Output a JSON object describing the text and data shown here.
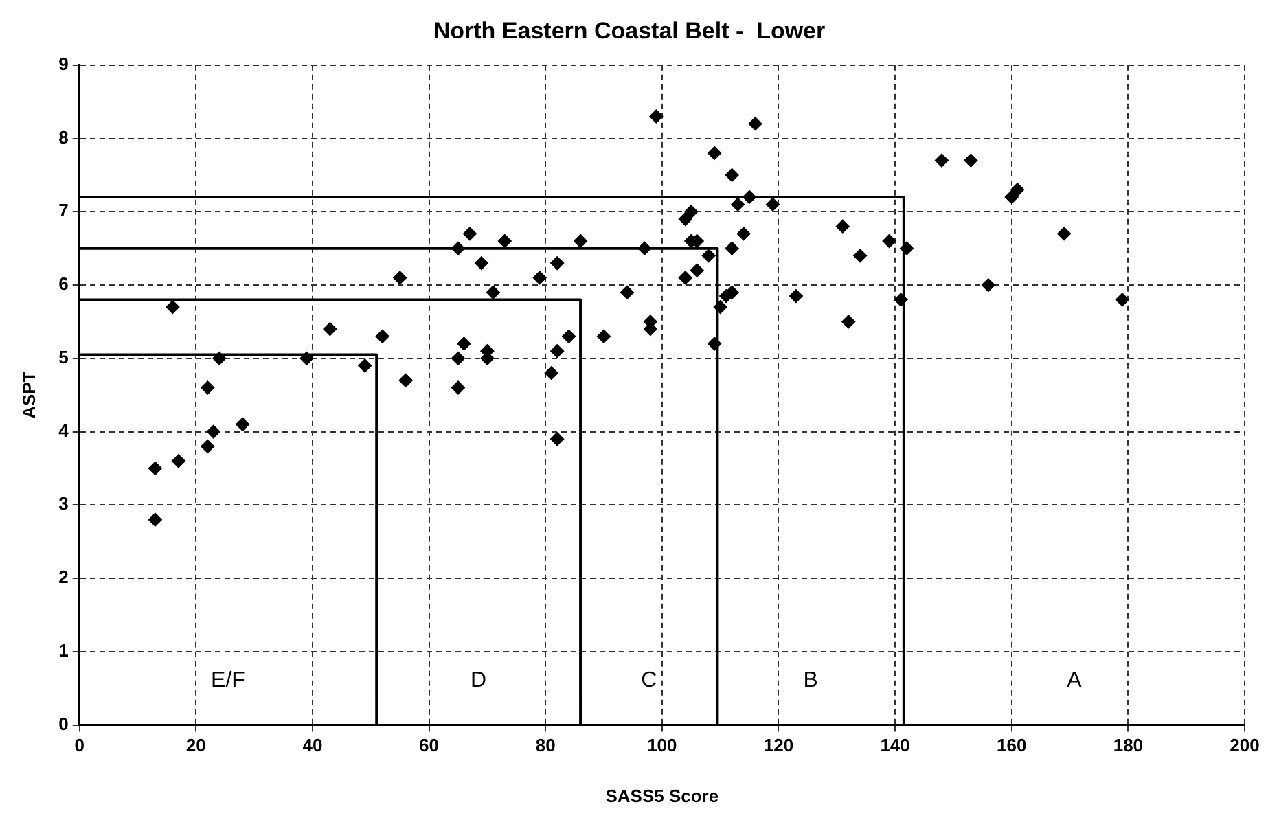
{
  "chart_data": {
    "type": "scatter",
    "title": "North Eastern Coastal Belt -  Lower",
    "xlabel": "SASS5 Score",
    "ylabel": "ASPT",
    "xlim": [
      0,
      200
    ],
    "xticks": [
      0,
      20,
      40,
      60,
      80,
      100,
      120,
      140,
      160,
      180,
      200
    ],
    "ylim": [
      0,
      9
    ],
    "yticks": [
      0,
      1,
      2,
      3,
      4,
      5,
      6,
      7,
      8,
      9
    ],
    "grid": true,
    "legend": false,
    "marker": "diamond",
    "series": [
      {
        "color": "#000000",
        "x": [
          13,
          13,
          16,
          17,
          22,
          22,
          23,
          24,
          28,
          39,
          43,
          49,
          52,
          55,
          56,
          56,
          65,
          65,
          65,
          66,
          67,
          69,
          70,
          70,
          71,
          73,
          79,
          81,
          82,
          82,
          82,
          84,
          86,
          90,
          94,
          97,
          98,
          98,
          99,
          104,
          104,
          105,
          105,
          106,
          106,
          108,
          109,
          109,
          110,
          111,
          112,
          112,
          112,
          113,
          114,
          115,
          116,
          119,
          123,
          131,
          132,
          134,
          139,
          141,
          142,
          148,
          153,
          156,
          160,
          161,
          169,
          179
        ],
        "values": [
          2.8,
          3.5,
          5.7,
          3.6,
          3.8,
          4.6,
          4.0,
          5.0,
          4.1,
          5.0,
          5.4,
          4.9,
          5.3,
          6.1,
          4.7,
          4.7,
          4.6,
          5.0,
          6.5,
          5.2,
          6.7,
          6.3,
          5.0,
          5.1,
          5.9,
          6.6,
          6.1,
          4.8,
          3.9,
          5.1,
          6.3,
          5.3,
          6.6,
          5.3,
          5.9,
          6.5,
          5.4,
          5.5,
          8.3,
          6.9,
          6.1,
          7.0,
          6.6,
          6.6,
          6.2,
          6.4,
          7.8,
          5.2,
          5.7,
          5.85,
          5.9,
          6.5,
          7.5,
          7.1,
          6.7,
          7.2,
          8.2,
          7.1,
          5.85,
          6.8,
          5.5,
          6.4,
          6.6,
          5.8,
          6.5,
          7.7,
          7.7,
          6.0,
          7.2,
          7.3,
          6.7,
          5.8
        ]
      },
      {
        "type": "line",
        "color": "#000000",
        "marker": "none",
        "line_style": "solid",
        "x": [
          0,
          51,
          51
        ],
        "values": [
          5.05,
          5.05,
          0
        ]
      },
      {
        "type": "line",
        "color": "#000000",
        "marker": "none",
        "line_style": "solid",
        "x": [
          0,
          86,
          86
        ],
        "values": [
          5.8,
          5.8,
          0
        ]
      },
      {
        "type": "line",
        "color": "#000000",
        "marker": "none",
        "line_style": "solid",
        "x": [
          0,
          109.5,
          109.5
        ],
        "values": [
          6.5,
          6.5,
          0
        ]
      },
      {
        "type": "line",
        "color": "#000000",
        "marker": "none",
        "line_style": "solid",
        "x": [
          0,
          141.5,
          141.5
        ],
        "values": [
          7.2,
          7.2,
          0
        ]
      }
    ],
    "annotations": [
      "E/F",
      "D",
      "C",
      "B",
      "A"
    ]
  }
}
